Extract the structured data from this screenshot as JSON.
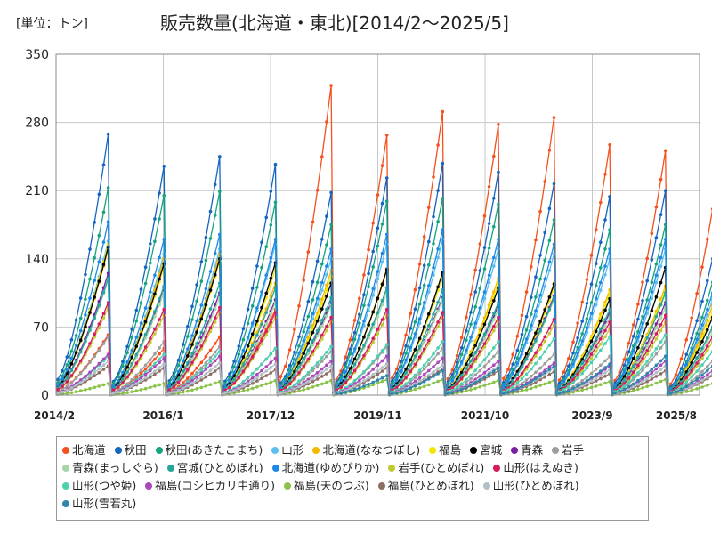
{
  "unit_label": "[単位：トン]",
  "chart_data": {
    "type": "line",
    "title": "販売数量(北海道・東北)[2014/2～2025/5]",
    "ylim": [
      0,
      350
    ],
    "y_ticks": [
      0,
      70,
      140,
      210,
      280,
      350
    ],
    "x_tick_labels": [
      "2014/2",
      "2016/1",
      "2017/12",
      "2019/11",
      "2021/10",
      "2023/9",
      "2025/8"
    ],
    "grid": true,
    "legend_position": "bottom",
    "seasons": [
      "2014",
      "2015",
      "2016",
      "2017",
      "2018",
      "2019",
      "2020",
      "2021",
      "2022",
      "2023",
      "2024",
      "2025"
    ],
    "series": [
      {
        "name": "北海道",
        "color": "#f4511e",
        "peaks": [
          62,
          48,
          60,
          88,
          318,
          267,
          291,
          278,
          285,
          257,
          251,
          191
        ]
      },
      {
        "name": "秋田",
        "color": "#1565c0",
        "peaks": [
          268,
          235,
          245,
          237,
          208,
          223,
          238,
          229,
          217,
          204,
          210,
          140
        ]
      },
      {
        "name": "秋田(あきたこまち)",
        "color": "#16a37f",
        "peaks": [
          213,
          205,
          209,
          198,
          175,
          199,
          202,
          196,
          180,
          170,
          175,
          116
        ]
      },
      {
        "name": "山形",
        "color": "#5bc0eb",
        "peaks": [
          158,
          145,
          150,
          155,
          140,
          155,
          160,
          150,
          145,
          140,
          150,
          98
        ]
      },
      {
        "name": "北海道(ななつぼし)",
        "color": "#f5b800",
        "peaks": [
          150,
          140,
          145,
          115,
          128,
          130,
          125,
          120,
          115,
          108,
          112,
          92
        ]
      },
      {
        "name": "福島",
        "color": "#f2e600",
        "peaks": [
          155,
          132,
          138,
          130,
          122,
          128,
          122,
          115,
          110,
          105,
          108,
          85
        ]
      },
      {
        "name": "宮城",
        "color": "#000000",
        "peaks": [
          152,
          135,
          140,
          136,
          115,
          129,
          126,
          110,
          114,
          99,
          131,
          80
        ]
      },
      {
        "name": "青森",
        "color": "#7b1fa2",
        "peaks": [
          125,
          110,
          105,
          98,
          95,
          110,
          100,
          92,
          102,
          85,
          95,
          70
        ]
      },
      {
        "name": "岩手",
        "color": "#9e9e9e",
        "peaks": [
          60,
          55,
          50,
          48,
          45,
          50,
          48,
          45,
          42,
          40,
          55,
          35
        ]
      },
      {
        "name": "青森(まっしぐら)",
        "color": "#a5d6a7",
        "peaks": [
          118,
          105,
          100,
          95,
          92,
          105,
          98,
          88,
          98,
          80,
          90,
          65
        ]
      },
      {
        "name": "宮城(ひとめぼれ)",
        "color": "#26a69a",
        "peaks": [
          120,
          112,
          115,
          110,
          100,
          110,
          108,
          95,
          100,
          88,
          105,
          70
        ]
      },
      {
        "name": "北海道(ゆめぴりか)",
        "color": "#1e88e5",
        "peaks": [
          178,
          160,
          165,
          160,
          150,
          165,
          170,
          160,
          155,
          150,
          160,
          105
        ]
      },
      {
        "name": "岩手(ひとめぼれ)",
        "color": "#c0ca33",
        "peaks": [
          90,
          82,
          85,
          80,
          75,
          82,
          80,
          75,
          72,
          68,
          75,
          55
        ]
      },
      {
        "name": "山形(はえぬき)",
        "color": "#d81b60",
        "peaks": [
          95,
          88,
          90,
          85,
          80,
          88,
          85,
          80,
          78,
          75,
          82,
          60
        ]
      },
      {
        "name": "山形(つや姫)",
        "color": "#4dd0b0",
        "peaks": [
          40,
          42,
          45,
          48,
          50,
          52,
          55,
          55,
          58,
          60,
          62,
          45
        ]
      },
      {
        "name": "福島(コシヒカリ中通り)",
        "color": "#ab47bc",
        "peaks": [
          42,
          38,
          40,
          38,
          35,
          40,
          38,
          35,
          33,
          30,
          35,
          25
        ]
      },
      {
        "name": "福島(天のつぶ)",
        "color": "#8bc34a",
        "peaks": [
          12,
          12,
          14,
          15,
          15,
          16,
          16,
          15,
          15,
          14,
          16,
          12
        ]
      },
      {
        "name": "福島(ひとめぼれ)",
        "color": "#8d6e63",
        "peaks": [
          30,
          28,
          28,
          26,
          25,
          28,
          27,
          25,
          24,
          22,
          25,
          20
        ]
      },
      {
        "name": "山形(ひとめぼれ)",
        "color": "#b0bec5",
        "peaks": [
          35,
          32,
          33,
          32,
          30,
          32,
          31,
          30,
          28,
          26,
          30,
          22
        ]
      },
      {
        "name": "山形(雪若丸)",
        "color": "#2e86ab",
        "peaks": [
          0,
          0,
          0,
          0,
          0,
          20,
          25,
          28,
          30,
          32,
          40,
          30
        ]
      }
    ]
  }
}
